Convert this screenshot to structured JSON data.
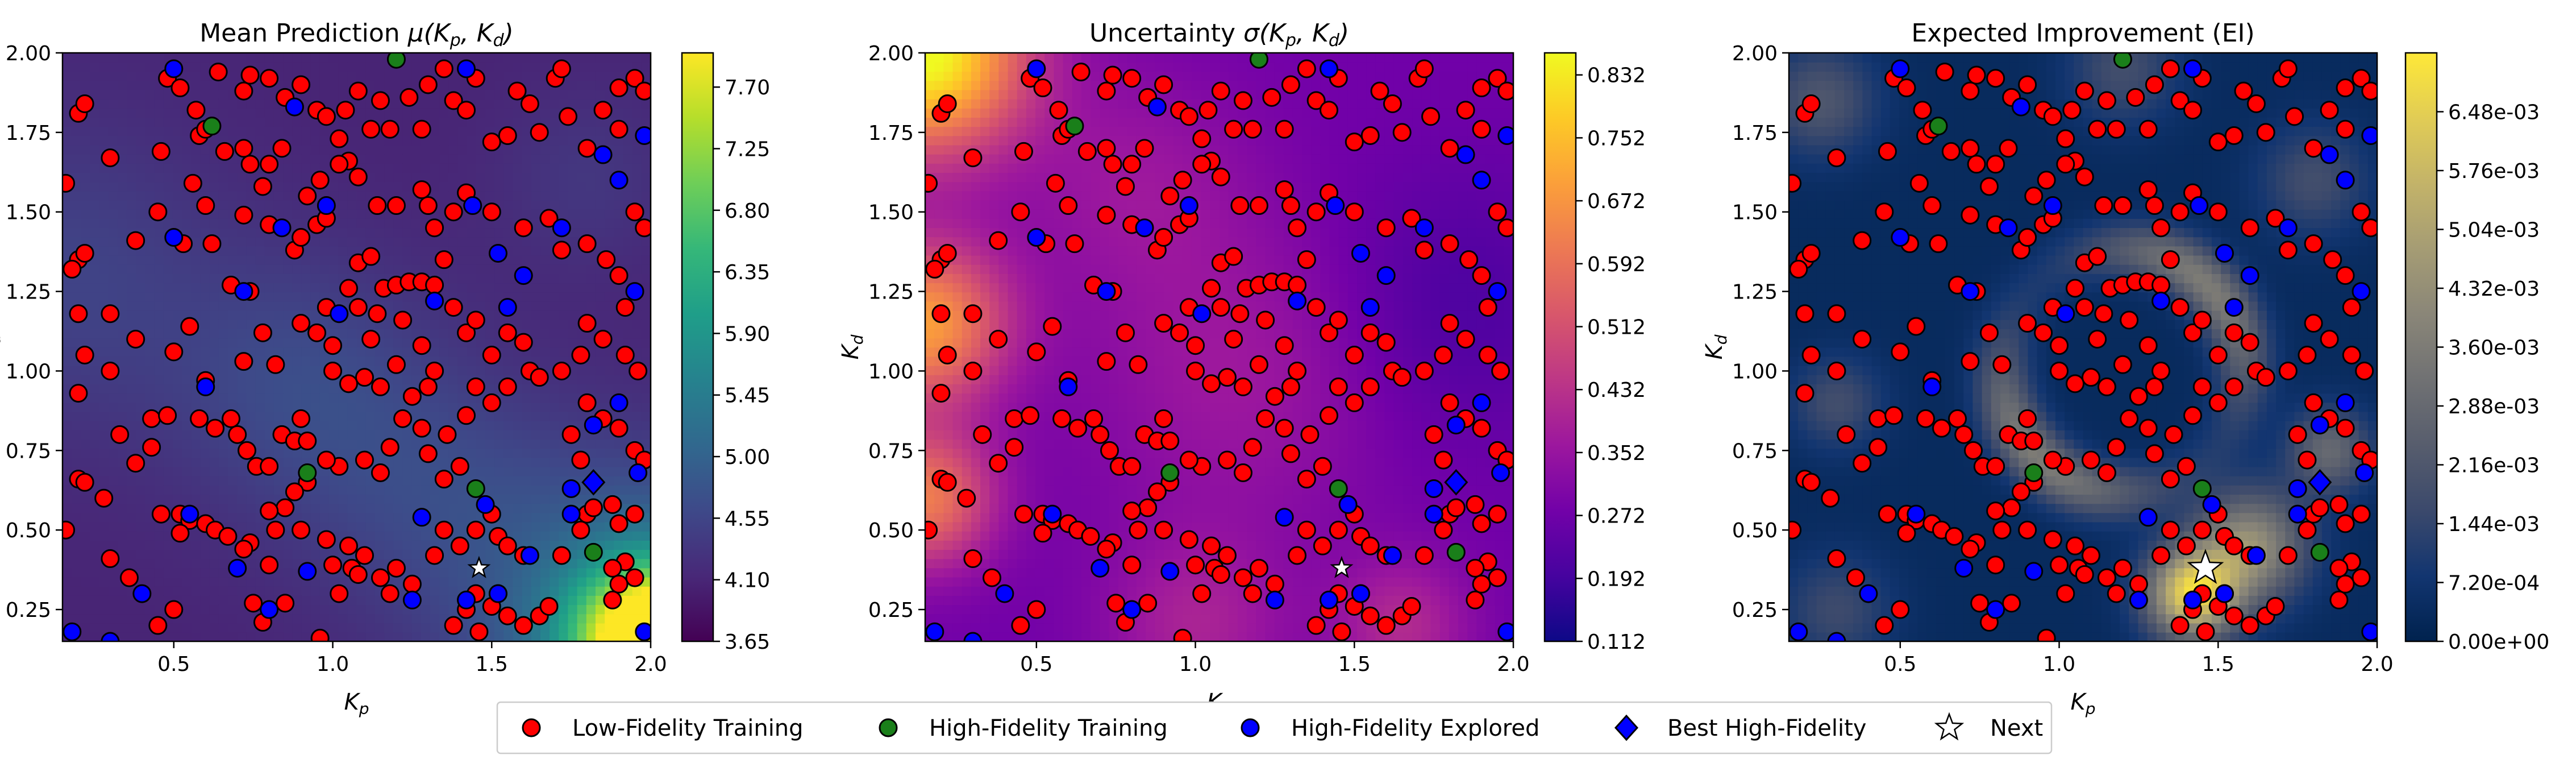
{
  "markers": {
    "low_fidelity_color": "#ff0000",
    "high_fidelity_color": "#1a7f1a",
    "explored_color": "#0000ff",
    "best_color": "#0000ff",
    "next_color": "#ffffff"
  },
  "legend": {
    "items": [
      {
        "label": "Low-Fidelity Training",
        "marker": "circle",
        "color": "#ff0000"
      },
      {
        "label": "High-Fidelity Training",
        "marker": "circle",
        "color": "#1a7f1a"
      },
      {
        "label": "High-Fidelity Explored",
        "marker": "circle",
        "color": "#0000ff"
      },
      {
        "label": "Best High-Fidelity",
        "marker": "diamond",
        "color": "#0000ff"
      },
      {
        "label": "Next",
        "marker": "star",
        "color": "#ffffff"
      }
    ]
  },
  "chart_data": [
    {
      "type": "heatmap",
      "title": "Mean Prediction μ(Kp, Kd)",
      "title_parts": {
        "text": "Mean Prediction ",
        "mu": "μ(",
        "kp": "K",
        "kp_sub": "p",
        "sep": ", ",
        "kd": "K",
        "kd_sub": "d",
        "close": ")"
      },
      "xlabel": "Kp",
      "ylabel": "Kd",
      "xlabel_parts": {
        "main": "K",
        "sub": "p"
      },
      "ylabel_parts": {
        "main": "K",
        "sub": "d"
      },
      "xlim": [
        0.15,
        2.0
      ],
      "ylim": [
        0.15,
        2.0
      ],
      "xticks": [
        "0.5",
        "1.0",
        "1.5",
        "2.0"
      ],
      "xtick_values": [
        0.5,
        1.0,
        1.5,
        2.0
      ],
      "yticks": [
        "0.25",
        "0.50",
        "0.75",
        "1.00",
        "1.25",
        "1.50",
        "1.75",
        "2.00"
      ],
      "ytick_values": [
        0.25,
        0.5,
        0.75,
        1.0,
        1.25,
        1.5,
        1.75,
        2.0
      ],
      "colormap": "viridis",
      "colorbar_ticks": [
        "3.65",
        "4.10",
        "4.55",
        "5.00",
        "5.45",
        "5.90",
        "6.35",
        "6.80",
        "7.25",
        "7.70"
      ],
      "colorbar_range": [
        3.65,
        7.95
      ]
    },
    {
      "type": "heatmap",
      "title": "Uncertainty σ(Kp, Kd)",
      "title_parts": {
        "text": "Uncertainty ",
        "mu": "σ(",
        "kp": "K",
        "kp_sub": "p",
        "sep": ", ",
        "kd": "K",
        "kd_sub": "d",
        "close": ")"
      },
      "xlabel": "Kp",
      "ylabel": "Kd",
      "xlabel_parts": {
        "main": "K",
        "sub": "p"
      },
      "ylabel_parts": {
        "main": "K",
        "sub": "d"
      },
      "xlim": [
        0.15,
        2.0
      ],
      "ylim": [
        0.15,
        2.0
      ],
      "xticks": [
        "0.5",
        "1.0",
        "1.5",
        "2.0"
      ],
      "xtick_values": [
        0.5,
        1.0,
        1.5,
        2.0
      ],
      "yticks": [
        "0.25",
        "0.50",
        "0.75",
        "1.00",
        "1.25",
        "1.50",
        "1.75",
        "2.00"
      ],
      "ytick_values": [
        0.25,
        0.5,
        0.75,
        1.0,
        1.25,
        1.5,
        1.75,
        2.0
      ],
      "colormap": "plasma",
      "colorbar_ticks": [
        "0.112",
        "0.192",
        "0.272",
        "0.352",
        "0.432",
        "0.512",
        "0.592",
        "0.672",
        "0.752",
        "0.832"
      ],
      "colorbar_range": [
        0.112,
        0.86
      ]
    },
    {
      "type": "heatmap",
      "title": "Expected Improvement (EI)",
      "title_parts": {
        "text": "Expected Improvement (EI)",
        "mu": "",
        "kp": "",
        "kp_sub": "",
        "sep": "",
        "kd": "",
        "kd_sub": "",
        "close": ""
      },
      "xlabel": "Kp",
      "ylabel": "Kd",
      "xlabel_parts": {
        "main": "K",
        "sub": "p"
      },
      "ylabel_parts": {
        "main": "K",
        "sub": "d"
      },
      "xlim": [
        0.15,
        2.0
      ],
      "ylim": [
        0.15,
        2.0
      ],
      "xticks": [
        "0.5",
        "1.0",
        "1.5",
        "2.0"
      ],
      "xtick_values": [
        0.5,
        1.0,
        1.5,
        2.0
      ],
      "yticks": [
        "0.25",
        "0.50",
        "0.75",
        "1.00",
        "1.25",
        "1.50",
        "1.75",
        "2.00"
      ],
      "ytick_values": [
        0.25,
        0.5,
        0.75,
        1.0,
        1.25,
        1.5,
        1.75,
        2.0
      ],
      "colormap": "cividis",
      "colorbar_ticks": [
        "0.00e+00",
        "7.20e-04",
        "1.44e-03",
        "2.16e-03",
        "2.88e-03",
        "3.60e-03",
        "4.32e-03",
        "5.04e-03",
        "5.76e-03",
        "6.48e-03"
      ],
      "colorbar_range": [
        0.0,
        0.0072
      ]
    }
  ],
  "points": {
    "low_fidelity": [
      [
        0.16,
        1.59
      ],
      [
        0.2,
        1.81
      ],
      [
        0.22,
        1.84
      ],
      [
        0.3,
        1.67
      ],
      [
        0.2,
        1.35
      ],
      [
        0.22,
        1.37
      ],
      [
        0.18,
        1.32
      ],
      [
        0.38,
        1.41
      ],
      [
        0.2,
        1.18
      ],
      [
        0.3,
        1.18
      ],
      [
        0.38,
        1.1
      ],
      [
        0.22,
        1.05
      ],
      [
        0.2,
        0.93
      ],
      [
        0.3,
        1.0
      ],
      [
        0.33,
        0.8
      ],
      [
        0.43,
        0.85
      ],
      [
        0.2,
        0.66
      ],
      [
        0.22,
        0.65
      ],
      [
        0.28,
        0.6
      ],
      [
        0.38,
        0.71
      ],
      [
        0.43,
        0.76
      ],
      [
        0.48,
        0.86
      ],
      [
        0.16,
        0.5
      ],
      [
        0.3,
        0.41
      ],
      [
        0.36,
        0.35
      ],
      [
        0.46,
        0.55
      ],
      [
        0.52,
        0.55
      ],
      [
        0.55,
        0.53
      ],
      [
        0.5,
        0.25
      ],
      [
        0.45,
        0.2
      ],
      [
        0.52,
        0.49
      ],
      [
        0.6,
        0.52
      ],
      [
        0.63,
        0.5
      ],
      [
        0.67,
        0.48
      ],
      [
        0.74,
        0.46
      ],
      [
        0.72,
        0.44
      ],
      [
        0.8,
        0.39
      ],
      [
        0.75,
        0.27
      ],
      [
        0.78,
        0.21
      ],
      [
        0.85,
        0.27
      ],
      [
        0.96,
        0.16
      ],
      [
        0.58,
        0.85
      ],
      [
        0.63,
        0.82
      ],
      [
        0.68,
        0.85
      ],
      [
        0.7,
        0.8
      ],
      [
        0.73,
        0.75
      ],
      [
        0.76,
        0.7
      ],
      [
        0.8,
        0.7
      ],
      [
        0.84,
        0.8
      ],
      [
        0.88,
        0.78
      ],
      [
        0.92,
        0.78
      ],
      [
        0.9,
        0.85
      ],
      [
        0.6,
        0.97
      ],
      [
        0.72,
        1.03
      ],
      [
        0.78,
        1.12
      ],
      [
        0.82,
        1.02
      ],
      [
        0.74,
        1.25
      ],
      [
        0.68,
        1.27
      ],
      [
        0.62,
        1.4
      ],
      [
        0.6,
        1.52
      ],
      [
        0.56,
        1.59
      ],
      [
        0.58,
        1.74
      ],
      [
        0.6,
        1.76
      ],
      [
        0.57,
        1.82
      ],
      [
        0.66,
        1.69
      ],
      [
        0.72,
        1.7
      ],
      [
        0.74,
        1.65
      ],
      [
        0.8,
        1.65
      ],
      [
        0.84,
        1.7
      ],
      [
        0.78,
        1.58
      ],
      [
        0.72,
        1.49
      ],
      [
        0.8,
        1.46
      ],
      [
        0.88,
        1.38
      ],
      [
        0.9,
        1.42
      ],
      [
        0.95,
        1.46
      ],
      [
        0.98,
        1.48
      ],
      [
        0.92,
        1.55
      ],
      [
        0.96,
        1.6
      ],
      [
        0.46,
        1.69
      ],
      [
        0.45,
        1.5
      ],
      [
        0.53,
        1.4
      ],
      [
        0.55,
        1.14
      ],
      [
        0.5,
        1.06
      ],
      [
        0.48,
        1.92
      ],
      [
        0.52,
        1.89
      ],
      [
        0.64,
        1.94
      ],
      [
        0.72,
        1.88
      ],
      [
        0.74,
        1.93
      ],
      [
        0.8,
        1.92
      ],
      [
        0.85,
        1.86
      ],
      [
        0.9,
        1.9
      ],
      [
        0.95,
        1.82
      ],
      [
        0.98,
        1.8
      ],
      [
        1.02,
        1.73
      ],
      [
        1.05,
        1.66
      ],
      [
        1.08,
        1.61
      ],
      [
        1.02,
        1.65
      ],
      [
        1.04,
        1.82
      ],
      [
        1.08,
        1.88
      ],
      [
        1.12,
        1.76
      ],
      [
        1.15,
        1.85
      ],
      [
        1.18,
        1.76
      ],
      [
        1.24,
        1.86
      ],
      [
        1.28,
        1.76
      ],
      [
        1.3,
        1.9
      ],
      [
        1.35,
        1.95
      ],
      [
        1.38,
        1.85
      ],
      [
        1.42,
        1.82
      ],
      [
        1.45,
        1.92
      ],
      [
        1.5,
        1.72
      ],
      [
        1.55,
        1.74
      ],
      [
        1.58,
        1.88
      ],
      [
        1.62,
        1.84
      ],
      [
        1.65,
        1.75
      ],
      [
        1.7,
        1.92
      ],
      [
        1.72,
        1.95
      ],
      [
        1.74,
        1.8
      ],
      [
        1.8,
        1.7
      ],
      [
        1.85,
        1.82
      ],
      [
        1.9,
        1.89
      ],
      [
        1.95,
        1.92
      ],
      [
        1.98,
        1.88
      ],
      [
        1.9,
        1.76
      ],
      [
        1.14,
        1.52
      ],
      [
        1.2,
        1.52
      ],
      [
        1.28,
        1.57
      ],
      [
        1.3,
        1.52
      ],
      [
        1.32,
        1.45
      ],
      [
        1.38,
        1.5
      ],
      [
        1.42,
        1.56
      ],
      [
        1.5,
        1.5
      ],
      [
        1.6,
        1.45
      ],
      [
        1.68,
        1.48
      ],
      [
        1.72,
        1.38
      ],
      [
        1.8,
        1.4
      ],
      [
        1.86,
        1.35
      ],
      [
        1.9,
        1.3
      ],
      [
        1.92,
        1.2
      ],
      [
        1.98,
        1.45
      ],
      [
        1.95,
        1.5
      ],
      [
        1.08,
        1.34
      ],
      [
        1.12,
        1.36
      ],
      [
        1.05,
        1.26
      ],
      [
        1.08,
        1.2
      ],
      [
        1.14,
        1.18
      ],
      [
        1.16,
        1.26
      ],
      [
        1.2,
        1.27
      ],
      [
        1.24,
        1.28
      ],
      [
        1.28,
        1.28
      ],
      [
        1.32,
        1.27
      ],
      [
        1.35,
        1.35
      ],
      [
        1.38,
        1.2
      ],
      [
        1.42,
        1.12
      ],
      [
        1.45,
        1.16
      ],
      [
        1.5,
        1.05
      ],
      [
        1.55,
        1.12
      ],
      [
        1.6,
        1.09
      ],
      [
        1.62,
        1.0
      ],
      [
        1.65,
        0.98
      ],
      [
        1.55,
        0.95
      ],
      [
        1.5,
        0.9
      ],
      [
        1.45,
        0.95
      ],
      [
        1.42,
        0.86
      ],
      [
        1.36,
        0.8
      ],
      [
        1.4,
        0.7
      ],
      [
        1.35,
        0.66
      ],
      [
        1.3,
        0.74
      ],
      [
        1.28,
        0.82
      ],
      [
        1.22,
        0.85
      ],
      [
        1.18,
        0.76
      ],
      [
        1.15,
        0.68
      ],
      [
        1.1,
        0.72
      ],
      [
        1.02,
        0.7
      ],
      [
        0.98,
        0.72
      ],
      [
        0.92,
        0.65
      ],
      [
        0.88,
        0.62
      ],
      [
        0.85,
        0.57
      ],
      [
        0.82,
        0.5
      ],
      [
        0.8,
        0.56
      ],
      [
        0.9,
        0.5
      ],
      [
        0.98,
        0.47
      ],
      [
        1.05,
        0.45
      ],
      [
        1.1,
        0.42
      ],
      [
        1.06,
        0.38
      ],
      [
        1.0,
        0.39
      ],
      [
        1.02,
        0.3
      ],
      [
        1.08,
        0.36
      ],
      [
        1.15,
        0.35
      ],
      [
        1.18,
        0.3
      ],
      [
        1.2,
        0.38
      ],
      [
        1.25,
        0.33
      ],
      [
        1.32,
        0.42
      ],
      [
        1.35,
        0.5
      ],
      [
        1.4,
        0.45
      ],
      [
        1.45,
        0.5
      ],
      [
        1.5,
        0.55
      ],
      [
        1.52,
        0.48
      ],
      [
        1.55,
        0.45
      ],
      [
        1.6,
        0.42
      ],
      [
        1.45,
        0.3
      ],
      [
        1.5,
        0.26
      ],
      [
        1.42,
        0.25
      ],
      [
        1.38,
        0.2
      ],
      [
        1.46,
        0.18
      ],
      [
        1.52,
        0.3
      ],
      [
        1.55,
        0.23
      ],
      [
        1.6,
        0.2
      ],
      [
        1.65,
        0.23
      ],
      [
        1.68,
        0.26
      ],
      [
        1.72,
        0.42
      ],
      [
        1.78,
        0.5
      ],
      [
        1.8,
        0.55
      ],
      [
        1.82,
        0.57
      ],
      [
        1.88,
        0.58
      ],
      [
        1.9,
        0.52
      ],
      [
        1.95,
        0.55
      ],
      [
        1.92,
        0.4
      ],
      [
        1.88,
        0.38
      ],
      [
        1.95,
        0.35
      ],
      [
        1.9,
        0.33
      ],
      [
        1.88,
        0.28
      ],
      [
        1.75,
        0.8
      ],
      [
        1.78,
        0.72
      ],
      [
        1.8,
        0.9
      ],
      [
        1.85,
        0.85
      ],
      [
        1.9,
        0.82
      ],
      [
        1.95,
        0.75
      ],
      [
        1.98,
        0.72
      ],
      [
        1.72,
        1.0
      ],
      [
        1.78,
        1.05
      ],
      [
        1.8,
        1.15
      ],
      [
        1.85,
        1.1
      ],
      [
        1.92,
        1.05
      ],
      [
        1.96,
        1.0
      ],
      [
        1.0,
        1.0
      ],
      [
        1.05,
        0.96
      ],
      [
        1.1,
        0.98
      ],
      [
        1.15,
        0.95
      ],
      [
        1.2,
        1.02
      ],
      [
        1.28,
        1.08
      ],
      [
        1.32,
        1.0
      ],
      [
        1.25,
        0.92
      ],
      [
        1.3,
        0.95
      ],
      [
        0.98,
        1.2
      ],
      [
        0.95,
        1.12
      ],
      [
        0.9,
        1.15
      ],
      [
        1.0,
        1.08
      ],
      [
        1.22,
        1.16
      ],
      [
        1.12,
        1.1
      ]
    ],
    "high_fidelity": [
      [
        1.2,
        1.98
      ],
      [
        0.62,
        1.77
      ],
      [
        0.92,
        0.68
      ],
      [
        1.45,
        0.63
      ],
      [
        1.82,
        0.43
      ]
    ],
    "explored": [
      [
        0.5,
        1.95
      ],
      [
        0.5,
        1.42
      ],
      [
        0.88,
        1.83
      ],
      [
        0.84,
        1.45
      ],
      [
        0.98,
        1.52
      ],
      [
        1.44,
        1.52
      ],
      [
        1.52,
        1.37
      ],
      [
        1.55,
        1.2
      ],
      [
        1.6,
        1.3
      ],
      [
        1.72,
        1.45
      ],
      [
        1.85,
        1.68
      ],
      [
        1.98,
        1.74
      ],
      [
        1.9,
        1.6
      ],
      [
        1.42,
        1.95
      ],
      [
        1.9,
        0.9
      ],
      [
        1.82,
        0.83
      ],
      [
        1.95,
        1.25
      ],
      [
        0.72,
        1.25
      ],
      [
        0.6,
        0.95
      ],
      [
        1.02,
        1.18
      ],
      [
        1.32,
        1.22
      ],
      [
        0.18,
        0.18
      ],
      [
        0.3,
        0.15
      ],
      [
        0.4,
        0.3
      ],
      [
        0.55,
        0.55
      ],
      [
        0.7,
        0.38
      ],
      [
        0.92,
        0.37
      ],
      [
        0.8,
        0.25
      ],
      [
        1.25,
        0.28
      ],
      [
        1.42,
        0.28
      ],
      [
        1.52,
        0.3
      ],
      [
        1.62,
        0.42
      ],
      [
        1.75,
        0.55
      ],
      [
        1.75,
        0.63
      ],
      [
        1.96,
        0.68
      ],
      [
        1.98,
        0.18
      ],
      [
        1.48,
        0.58
      ],
      [
        1.28,
        0.54
      ]
    ],
    "best": [
      [
        1.82,
        0.65
      ]
    ],
    "next": [
      [
        1.46,
        0.38
      ]
    ]
  }
}
